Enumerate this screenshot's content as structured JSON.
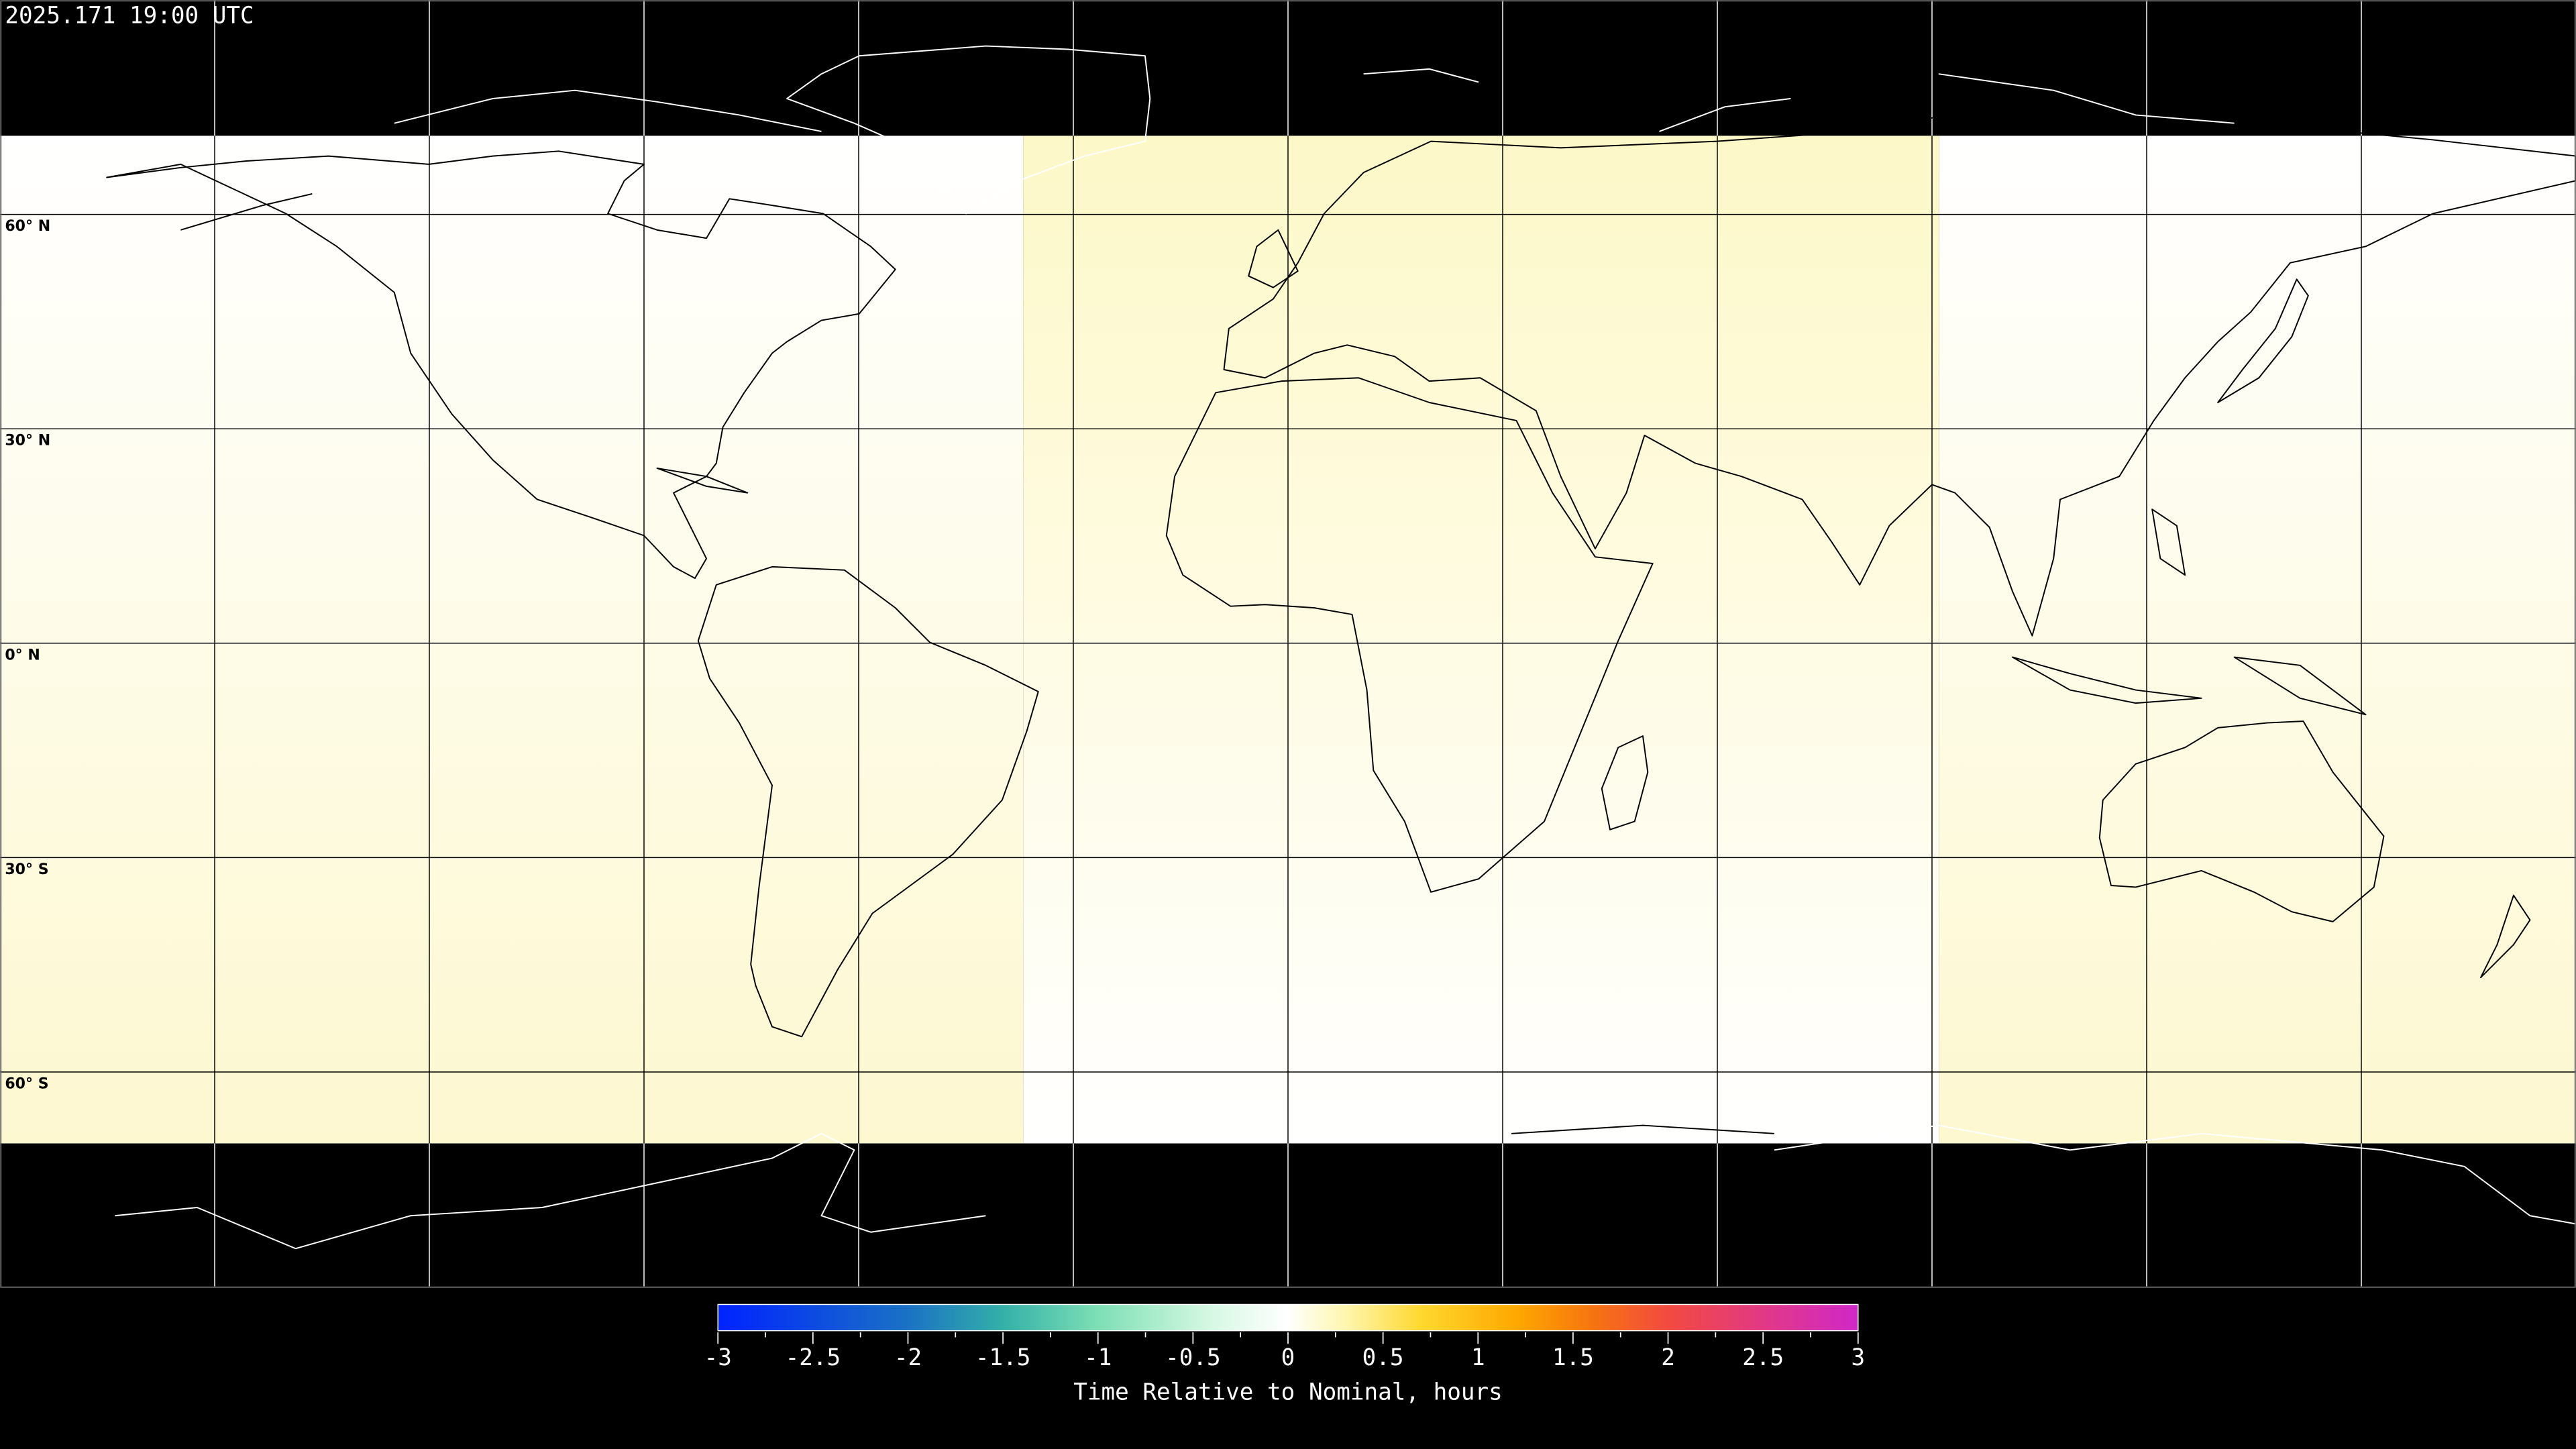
{
  "title": "2025.171 19:00 UTC",
  "map": {
    "projection": "equirectangular",
    "graticule_step_deg": 30,
    "lat_labels": [
      "60° N",
      "30° N",
      "0° N",
      "30° S",
      "60° S"
    ],
    "lat_values": [
      60,
      30,
      0,
      -30,
      -60
    ],
    "background_color": "#000000",
    "coastline_color": "#000000",
    "regions": [
      {
        "lon_range": [
          -180,
          -37
        ],
        "top_color": "#ffffff",
        "bottom_color": "#fdf8d0"
      },
      {
        "lon_range": [
          -37,
          91
        ],
        "top_color": "#fdf8c8",
        "bottom_color": "#ffffff"
      },
      {
        "lon_range": [
          91,
          180
        ],
        "top_color": "#ffffff",
        "bottom_color": "#fdf8d0"
      }
    ]
  },
  "colorbar": {
    "label": "Time Relative to Nominal, hours",
    "min": -3,
    "max": 3,
    "ticks": [
      "-3",
      "-2.5",
      "-2",
      "-1.5",
      "-1",
      "-0.5",
      "0",
      "0.5",
      "1",
      "1.5",
      "2",
      "2.5",
      "3"
    ],
    "colors": [
      {
        "value": -3,
        "color": "#0022ff"
      },
      {
        "value": -2,
        "color": "#1a72c4"
      },
      {
        "value": -1.5,
        "color": "#34b0a8"
      },
      {
        "value": -1,
        "color": "#7ddfb5"
      },
      {
        "value": -0.4,
        "color": "#d8f8e4"
      },
      {
        "value": 0,
        "color": "#ffffff"
      },
      {
        "value": 0.3,
        "color": "#fff6b0"
      },
      {
        "value": 0.7,
        "color": "#ffd830"
      },
      {
        "value": 1.2,
        "color": "#ffa800"
      },
      {
        "value": 1.6,
        "color": "#f57510"
      },
      {
        "value": 2,
        "color": "#f24a40"
      },
      {
        "value": 3,
        "color": "#d028c8"
      }
    ]
  }
}
